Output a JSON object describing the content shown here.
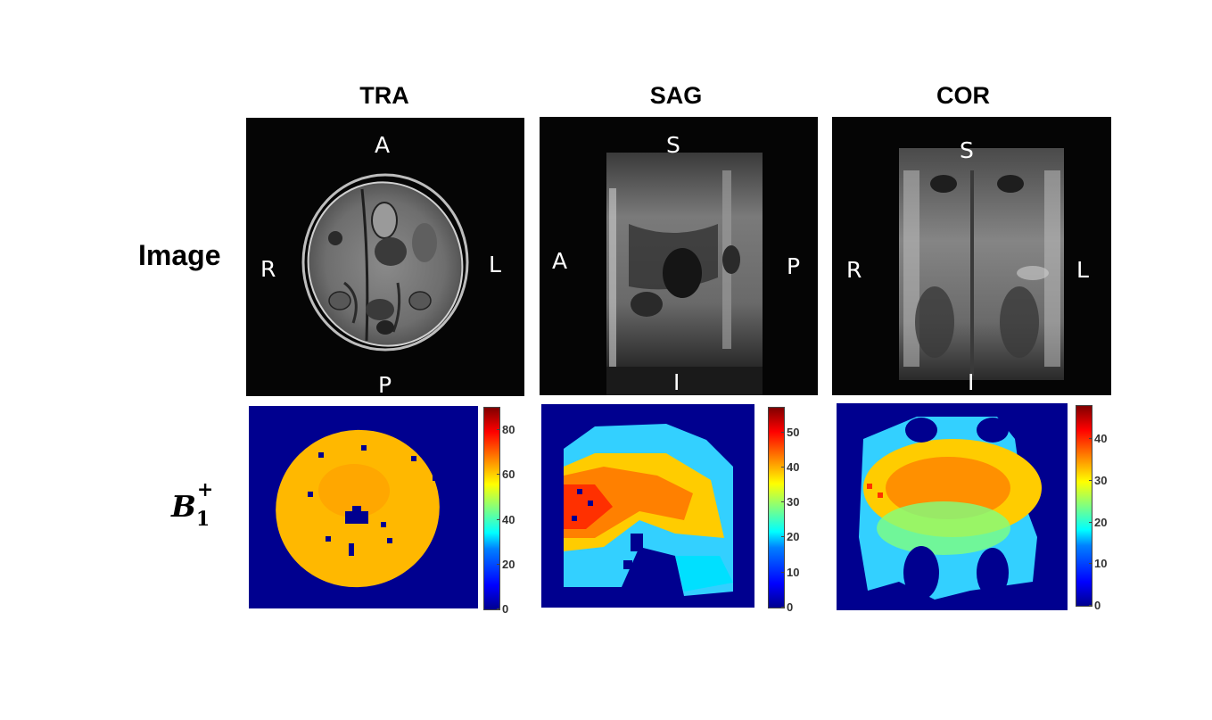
{
  "columns": {
    "tra": "TRA",
    "sag": "SAG",
    "cor": "COR"
  },
  "rows": {
    "image": "Image",
    "b1_base": "B",
    "b1_sub": "1",
    "b1_sup": "+"
  },
  "orientation": {
    "tra": {
      "top": "A",
      "bottom": "P",
      "left": "R",
      "right": "L"
    },
    "sag": {
      "top": "S",
      "bottom": "I",
      "left": "A",
      "right": "P"
    },
    "cor": {
      "top": "S",
      "bottom": "I",
      "left": "R",
      "right": "L"
    }
  },
  "colorbars": {
    "tra": {
      "max": 90,
      "ticks": [
        "80",
        "60",
        "40",
        "20",
        "0"
      ],
      "tick_values": [
        80,
        60,
        40,
        20,
        0
      ]
    },
    "sag": {
      "max": 57,
      "ticks": [
        "50",
        "40",
        "30",
        "20",
        "10",
        "0"
      ],
      "tick_values": [
        50,
        40,
        30,
        20,
        10,
        0
      ]
    },
    "cor": {
      "max": 48,
      "ticks": [
        "40",
        "30",
        "20",
        "10",
        "0"
      ],
      "tick_values": [
        40,
        30,
        20,
        10,
        0
      ]
    }
  },
  "colors": {
    "background_map": "#00008f",
    "mri_background": "#050505"
  }
}
